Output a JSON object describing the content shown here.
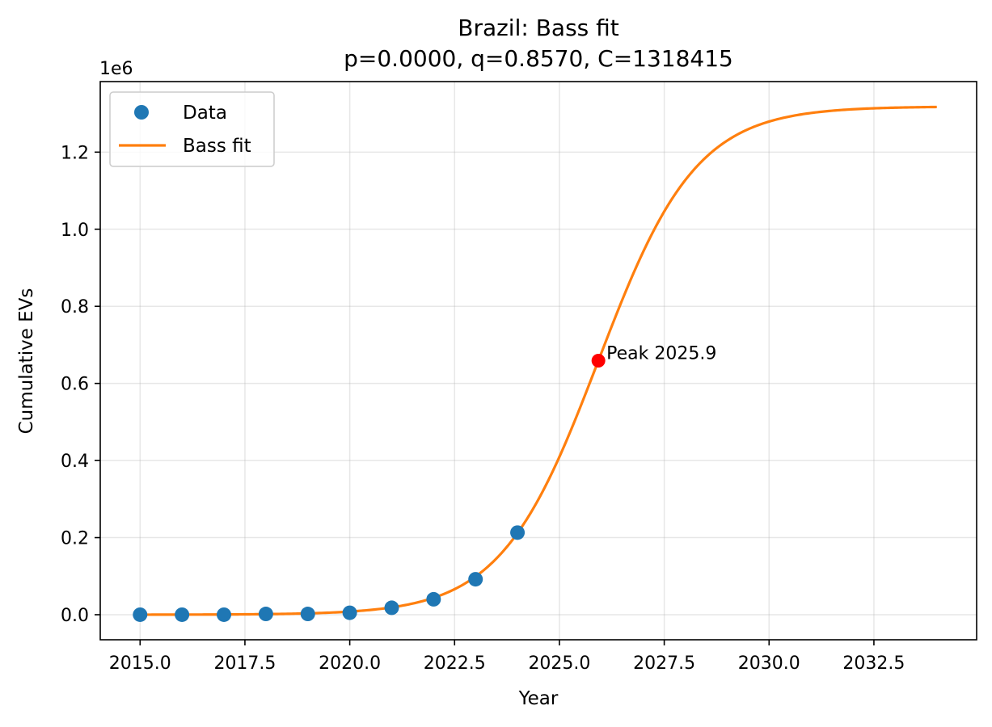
{
  "chart_data": {
    "type": "scatter",
    "title": "Brazil: Bass fit",
    "subtitle": "p=0.0000, q=0.8570, C=1318415",
    "xlabel": "Year",
    "ylabel": "Cumulative EVs",
    "y_offset_text": "1e6",
    "xlim": [
      2014.05,
      2034.95
    ],
    "ylim": [
      -65000,
      1383000
    ],
    "x_ticks": [
      2015,
      2017.5,
      2020,
      2022.5,
      2025,
      2027.5,
      2030,
      2032.5
    ],
    "x_tick_labels": [
      "2015.0",
      "2017.5",
      "2020.0",
      "2022.5",
      "2025.0",
      "2027.5",
      "2030.0",
      "2032.5"
    ],
    "y_ticks": [
      0,
      200000,
      400000,
      600000,
      800000,
      1000000,
      1200000
    ],
    "y_tick_labels": [
      "0.0",
      "0.2",
      "0.4",
      "0.6",
      "0.8",
      "1.0",
      "1.2"
    ],
    "grid": true,
    "legend": {
      "position": "upper-left",
      "items": [
        "Data",
        "Bass fit"
      ]
    },
    "series": [
      {
        "name": "Data",
        "kind": "scatter",
        "color": "#1f77b4",
        "x": [
          2015,
          2016,
          2017,
          2018,
          2019,
          2020,
          2021,
          2022,
          2023,
          2024
        ],
        "y": [
          0,
          0,
          0,
          2000,
          2000,
          5000,
          18000,
          40000,
          92000,
          213000
        ]
      },
      {
        "name": "Bass fit",
        "kind": "line",
        "color": "#ff7f0e",
        "x_range": [
          2015,
          2034
        ],
        "params": {
          "p": 0.0,
          "q": 0.857,
          "C": 1318415,
          "peak": 2025.93
        }
      }
    ],
    "annotation": {
      "text": "Peak 2025.9",
      "x": 2025.93,
      "y": 659000,
      "color": "#ff0000"
    }
  }
}
